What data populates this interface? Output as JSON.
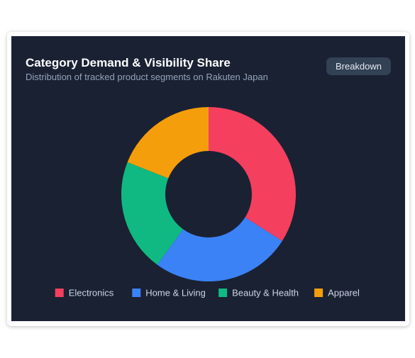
{
  "chart_data": {
    "type": "donut",
    "title": "Category Demand & Visibility Share",
    "subtitle": "Distribution of tracked product segments on Rakuten Japan",
    "button": "Breakdown",
    "categories": [
      "Electronics",
      "Home & Living",
      "Beauty & Health",
      "Apparel"
    ],
    "values": [
      34,
      26,
      21,
      19
    ],
    "colors": [
      "#f43f5e",
      "#3b82f6",
      "#10b981",
      "#f59e0b"
    ],
    "legend": "bottom"
  }
}
